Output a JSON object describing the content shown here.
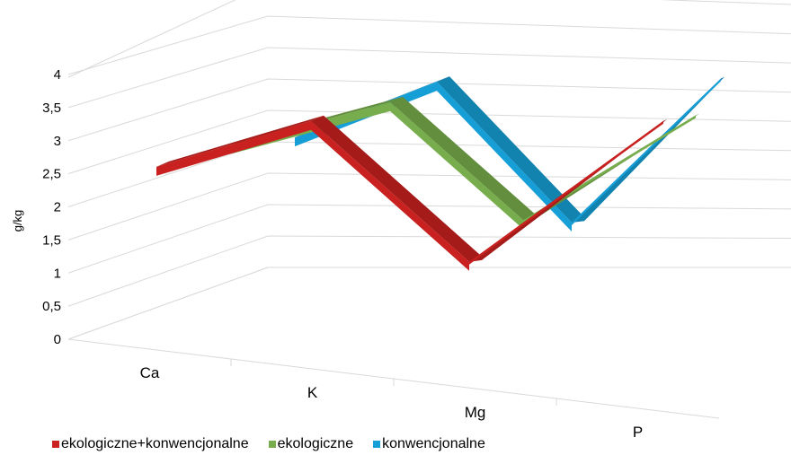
{
  "chart_data": {
    "type": "line",
    "style": "3d-ribbon",
    "ylabel": "g/kg",
    "ylim": [
      0,
      4
    ],
    "yticks": [
      "0",
      "0,5",
      "1",
      "1,5",
      "2",
      "2,5",
      "3",
      "3,5",
      "4"
    ],
    "ytick_values": [
      0,
      0.5,
      1,
      1.5,
      2,
      2.5,
      3,
      3.5,
      4
    ],
    "categories": [
      "Ca",
      "K",
      "Mg",
      "P"
    ],
    "grid": true,
    "legend_position": "bottom",
    "series": [
      {
        "name": "ekologiczne+konwencjonalne",
        "color": "#c8211f",
        "values": [
          2.55,
          3.25,
          1.1,
          3.25
        ]
      },
      {
        "name": "ekologiczne",
        "color": "#77ad4c",
        "values": [
          2.9,
          3.55,
          1.75,
          3.35
        ]
      },
      {
        "name": "konwencjonalne",
        "color": "#169ed6",
        "values": [
          3.45,
          4.3,
          2.15,
          4.35
        ]
      }
    ]
  }
}
